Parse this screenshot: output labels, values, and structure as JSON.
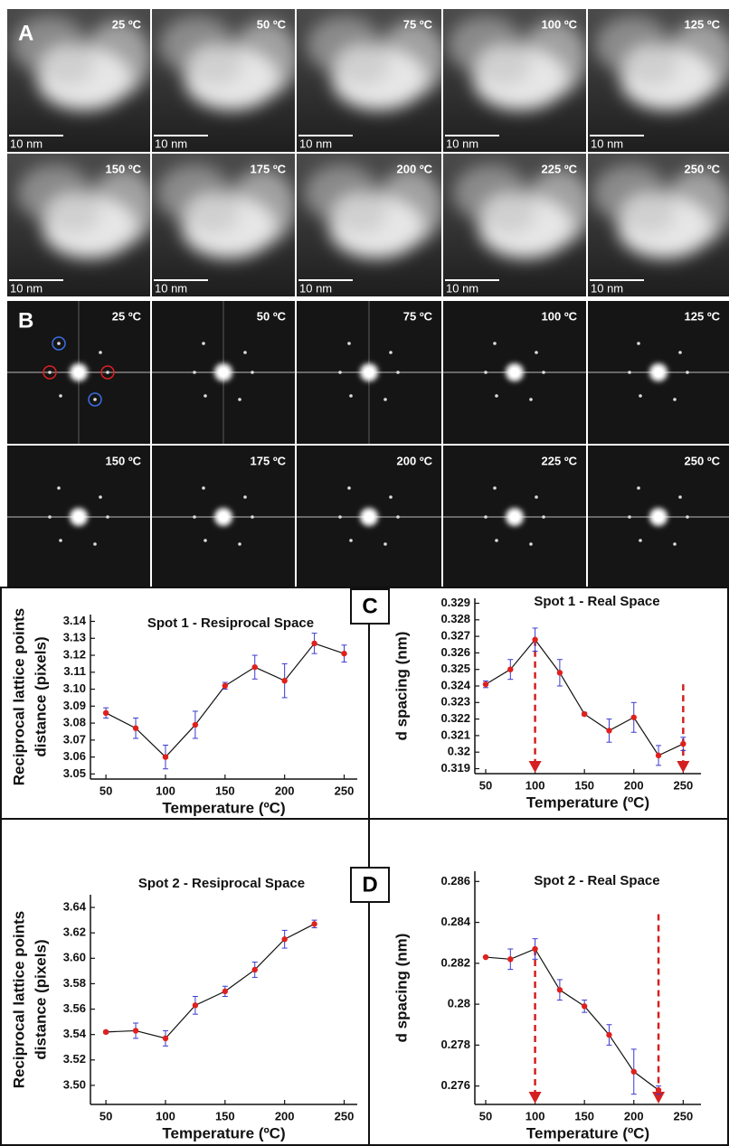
{
  "panels": {
    "A": {
      "label": "A",
      "images": [
        {
          "temp": "25 ºC",
          "scale": "10 nm"
        },
        {
          "temp": "50 ºC",
          "scale": "10 nm"
        },
        {
          "temp": "75 ºC",
          "scale": "10 nm"
        },
        {
          "temp": "100 ºC",
          "scale": "10 nm"
        },
        {
          "temp": "125 ºC",
          "scale": "10 nm"
        },
        {
          "temp": "150 ºC",
          "scale": "10 nm"
        },
        {
          "temp": "175 ºC",
          "scale": "10 nm"
        },
        {
          "temp": "200 ºC",
          "scale": "10 nm"
        },
        {
          "temp": "225 ºC",
          "scale": "10 nm"
        },
        {
          "temp": "250 ºC",
          "scale": "10 nm"
        }
      ]
    },
    "B": {
      "label": "B",
      "images": [
        {
          "temp": "25 ºC"
        },
        {
          "temp": "50 ºC"
        },
        {
          "temp": "75 ºC"
        },
        {
          "temp": "100 ºC"
        },
        {
          "temp": "125 ºC"
        },
        {
          "temp": "150 ºC"
        },
        {
          "temp": "175 ºC"
        },
        {
          "temp": "200 ºC"
        },
        {
          "temp": "225 ºC"
        },
        {
          "temp": "250 ºC"
        }
      ]
    },
    "C": {
      "label": "C"
    },
    "D": {
      "label": "D"
    }
  },
  "chart_data": [
    {
      "type": "line",
      "title": "Spot 1 - Resiprocal Space",
      "xlabel": "Temperature (ºC)",
      "ylabel": [
        "Reciprocal lattice points",
        "distance (pixels)"
      ],
      "x": [
        50,
        75,
        100,
        125,
        150,
        175,
        200,
        225,
        250
      ],
      "values": [
        3.086,
        3.077,
        3.06,
        3.079,
        3.102,
        3.113,
        3.105,
        3.127,
        3.121
      ],
      "errors": [
        0.003,
        0.006,
        0.007,
        0.008,
        0.002,
        0.007,
        0.01,
        0.006,
        0.005
      ],
      "color": "#e0201c",
      "line_color": "#111111",
      "error_color": "#3a3acf",
      "xlim": [
        37,
        261
      ],
      "xticks": [
        50,
        100,
        150,
        200,
        250
      ],
      "ylim": [
        3.047,
        3.144
      ],
      "yticks": [
        3.05,
        3.06,
        3.07,
        3.08,
        3.09,
        {
          "value": 3.1,
          "label": "3.10"
        },
        3.11,
        3.12,
        3.13,
        3.14
      ]
    },
    {
      "type": "line",
      "title": "Spot 1 - Real Space",
      "xlabel": "Temperature (ºC)",
      "ylabel": [
        "d spacing (nm)"
      ],
      "x": [
        50,
        75,
        100,
        125,
        150,
        175,
        200,
        225,
        250
      ],
      "values": [
        0.3241,
        0.325,
        0.3268,
        0.3248,
        0.3223,
        0.3213,
        0.3221,
        0.3198,
        0.3205
      ],
      "errors": [
        0.0002,
        0.0006,
        0.0007,
        0.0008,
        0.0001,
        0.0007,
        0.0009,
        0.0006,
        0.0004
      ],
      "color": "#e0201c",
      "line_color": "#111111",
      "error_color": "#3a3acf",
      "xlim": [
        39,
        268
      ],
      "xticks": [
        50,
        100,
        150,
        200,
        250
      ],
      "ylim": [
        0.3187,
        0.3293
      ],
      "yticks": [
        0.319,
        0.32,
        0.321,
        0.322,
        0.323,
        0.324,
        0.325,
        0.326,
        0.327,
        0.328,
        0.329
      ],
      "arrows": [
        {
          "x": 100,
          "y_start": 0.3268
        },
        {
          "x": 250,
          "y_start": 0.3241
        }
      ],
      "arrow_color": "#d42020"
    },
    {
      "type": "line",
      "title": "Spot 2 - Resiprocal Space",
      "xlabel": "Temperature (ºC)",
      "ylabel": [
        "Reciprocal lattice points",
        "distance (pixels)"
      ],
      "x": [
        50,
        75,
        100,
        125,
        150,
        175,
        200,
        225
      ],
      "values": [
        3.542,
        3.543,
        3.537,
        3.563,
        3.574,
        3.591,
        3.615,
        3.627
      ],
      "errors": [
        0.001,
        0.006,
        0.006,
        0.007,
        0.004,
        0.006,
        0.007,
        0.003
      ],
      "color": "#e0201c",
      "line_color": "#111111",
      "error_color": "#3a3acf",
      "xlim": [
        37,
        261
      ],
      "xticks": [
        50,
        100,
        150,
        200,
        250
      ],
      "ylim": [
        3.485,
        3.65
      ],
      "yticks": [
        {
          "value": 3.5,
          "label": "3.50"
        },
        3.52,
        3.54,
        3.56,
        3.58,
        {
          "value": 3.6,
          "label": "3.60"
        },
        3.62,
        3.64
      ]
    },
    {
      "type": "line",
      "title": "Spot 2 - Real Space",
      "xlabel": "Temperature (ºC)",
      "ylabel": [
        "d spacing (nm)"
      ],
      "x": [
        50,
        75,
        100,
        125,
        150,
        175,
        200,
        225
      ],
      "values": [
        0.2823,
        0.2822,
        0.2827,
        0.2807,
        0.2799,
        0.2785,
        0.2767,
        0.2758
      ],
      "errors": [
        0,
        0.0005,
        0.0005,
        0.0005,
        0.0003,
        0.0005,
        0.0011,
        0.0002
      ],
      "color": "#e0201c",
      "line_color": "#111111",
      "error_color": "#3a3acf",
      "xlim": [
        39,
        268
      ],
      "xticks": [
        50,
        100,
        150,
        200,
        250
      ],
      "ylim": [
        0.2751,
        0.2865
      ],
      "yticks": [
        0.276,
        0.278,
        0.28,
        0.282,
        0.284,
        0.286
      ],
      "arrows": [
        {
          "x": 100,
          "y_start": 0.2827
        },
        {
          "x": 225,
          "y_start": 0.2844
        }
      ],
      "arrow_color": "#d42020"
    }
  ]
}
